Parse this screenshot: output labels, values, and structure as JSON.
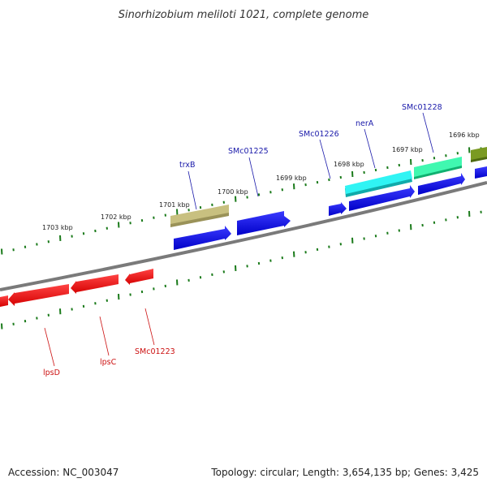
{
  "title": "Sinorhizobium meliloti 1021, complete genome",
  "footer": {
    "accession": "Accession: NC_003047",
    "summary": "Topology: circular; Length: 3,654,135 bp; Genes: 3,425"
  },
  "ruler_labels": [
    "1703 kbp",
    "1702 kbp",
    "1701 kbp",
    "1700 kbp",
    "1699 kbp",
    "1698 kbp",
    "1697 kbp",
    "1696 kbp"
  ],
  "gene_labels_forward": [
    "trxB",
    "SMc01225",
    "SMc01226",
    "nerA",
    "SMc01228"
  ],
  "gene_labels_reverse": [
    "lpsD",
    "lpsC",
    "SMc01223"
  ],
  "colors": {
    "backbone": "#808080",
    "ruler_tick": "#1a7a1a",
    "forward_cds": "#0a0ae6",
    "reverse_cds": "#ee1111",
    "trxB": "#b8b070",
    "nerA": "#17e8e8",
    "SMc01228": "#18e898",
    "olive_gene": "#6a8a1a"
  }
}
